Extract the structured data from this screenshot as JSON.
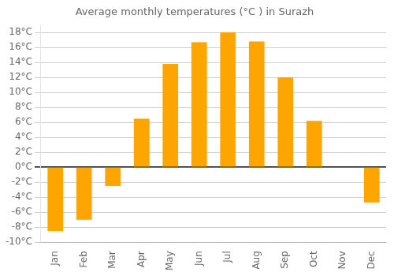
{
  "chart_data": {
    "type": "bar",
    "title": "Average monthly temperatures (°C ) in Surazh",
    "categories": [
      "Jan",
      "Feb",
      "Mar",
      "Apr",
      "May",
      "Jun",
      "Jul",
      "Aug",
      "Sep",
      "Oct",
      "Nov",
      "Dec"
    ],
    "values": [
      -8.5,
      -7.0,
      -2.5,
      6.5,
      13.8,
      16.7,
      18.0,
      16.8,
      12.0,
      6.2,
      0.0,
      -4.7
    ],
    "color": "#FFA500",
    "ylim": [
      -10,
      19
    ],
    "yticks": [
      {
        "value": -10,
        "label": "-10°C"
      },
      {
        "value": -8,
        "label": "-8°C"
      },
      {
        "value": -6,
        "label": "-6°C"
      },
      {
        "value": -4,
        "label": "-4°C"
      },
      {
        "value": -2,
        "label": "-2°C"
      },
      {
        "value": 0,
        "label": "0°C"
      },
      {
        "value": 2,
        "label": "2°C"
      },
      {
        "value": 4,
        "label": "4°C"
      },
      {
        "value": 6,
        "label": "6°C"
      },
      {
        "value": 8,
        "label": "8°C"
      },
      {
        "value": 10,
        "label": "10°C"
      },
      {
        "value": 12,
        "label": "12°C"
      },
      {
        "value": 14,
        "label": "14°C"
      },
      {
        "value": 16,
        "label": "16°C"
      },
      {
        "value": 18,
        "label": "18°C"
      }
    ],
    "grid": true
  }
}
